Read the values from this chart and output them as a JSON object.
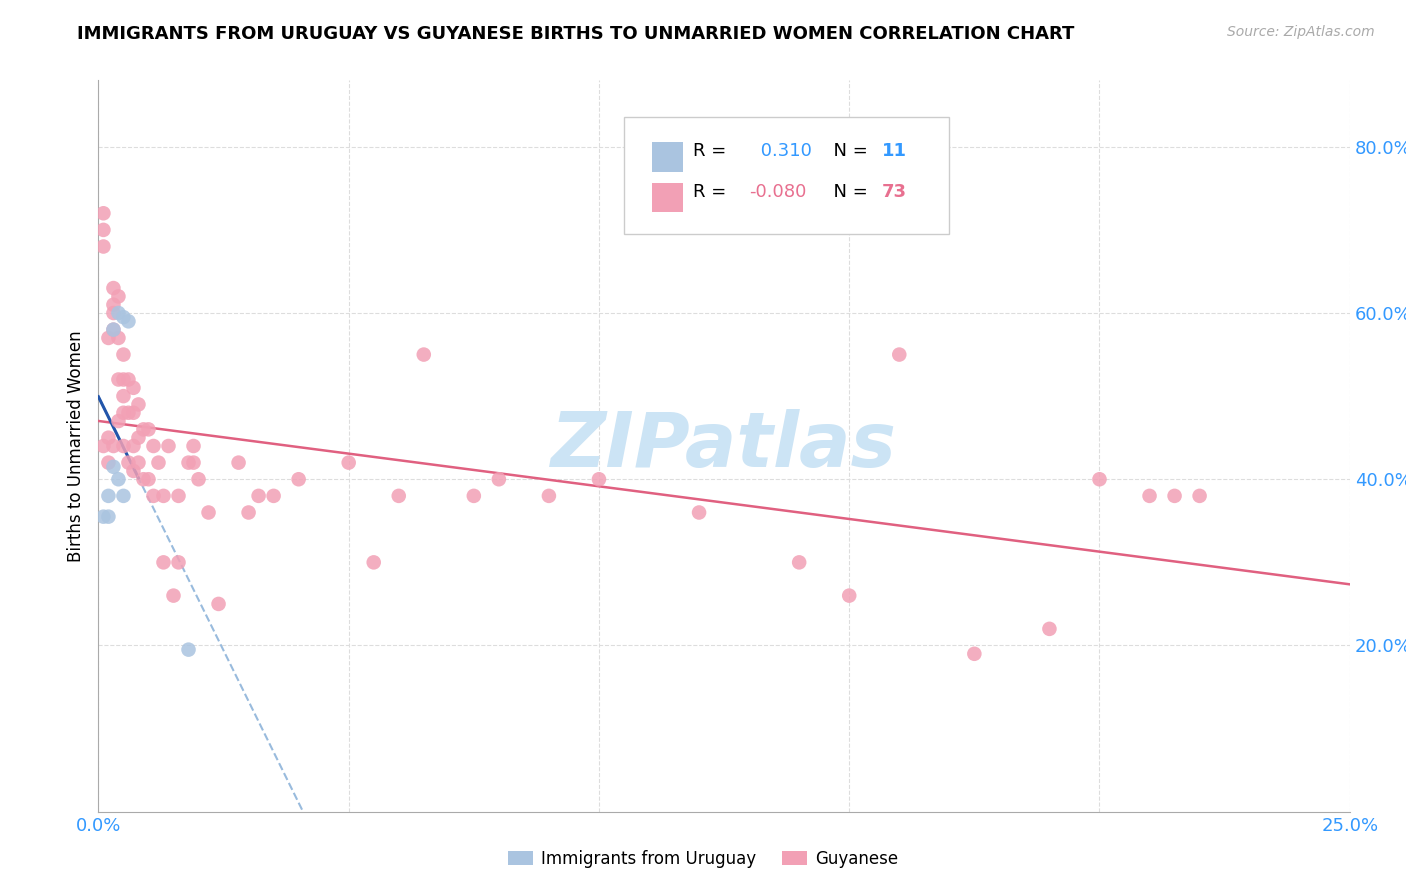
{
  "title": "IMMIGRANTS FROM URUGUAY VS GUYANESE BIRTHS TO UNMARRIED WOMEN CORRELATION CHART",
  "source": "Source: ZipAtlas.com",
  "ylabel": "Births to Unmarried Women",
  "blue_R": 0.31,
  "blue_N": 11,
  "pink_R": -0.08,
  "pink_N": 73,
  "blue_color": "#aac4e0",
  "pink_color": "#f2a0b5",
  "blue_line_color": "#2255aa",
  "pink_line_color": "#e06080",
  "blue_dash_color": "#99bbdd",
  "watermark": "ZIPatlas",
  "watermark_color": "#cce4f5",
  "xlim": [
    0,
    0.25
  ],
  "ylim": [
    0,
    0.88
  ],
  "ytick_vals": [
    0.2,
    0.4,
    0.6,
    0.8
  ],
  "ytick_labels": [
    "20.0%",
    "40.0%",
    "60.0%",
    "80.0%"
  ],
  "xtick_vals": [
    0.0,
    0.05,
    0.1,
    0.15,
    0.2,
    0.25
  ],
  "xtick_labels": [
    "0.0%",
    "",
    "",
    "",
    "",
    "25.0%"
  ],
  "blue_x": [
    0.001,
    0.002,
    0.002,
    0.003,
    0.003,
    0.004,
    0.004,
    0.005,
    0.005,
    0.006,
    0.018
  ],
  "blue_y": [
    0.355,
    0.355,
    0.38,
    0.415,
    0.58,
    0.4,
    0.6,
    0.38,
    0.595,
    0.59,
    0.195
  ],
  "pink_x": [
    0.001,
    0.001,
    0.001,
    0.001,
    0.002,
    0.002,
    0.002,
    0.003,
    0.003,
    0.003,
    0.003,
    0.003,
    0.004,
    0.004,
    0.004,
    0.004,
    0.005,
    0.005,
    0.005,
    0.005,
    0.005,
    0.006,
    0.006,
    0.006,
    0.007,
    0.007,
    0.007,
    0.007,
    0.008,
    0.008,
    0.008,
    0.009,
    0.009,
    0.01,
    0.01,
    0.011,
    0.011,
    0.012,
    0.013,
    0.013,
    0.014,
    0.015,
    0.016,
    0.016,
    0.018,
    0.019,
    0.019,
    0.02,
    0.022,
    0.024,
    0.028,
    0.03,
    0.032,
    0.035,
    0.04,
    0.05,
    0.055,
    0.06,
    0.065,
    0.075,
    0.08,
    0.09,
    0.1,
    0.12,
    0.14,
    0.15,
    0.16,
    0.175,
    0.19,
    0.2,
    0.21,
    0.215,
    0.22
  ],
  "pink_y": [
    0.44,
    0.68,
    0.7,
    0.72,
    0.42,
    0.45,
    0.57,
    0.44,
    0.58,
    0.6,
    0.61,
    0.63,
    0.47,
    0.52,
    0.57,
    0.62,
    0.44,
    0.48,
    0.5,
    0.52,
    0.55,
    0.42,
    0.48,
    0.52,
    0.41,
    0.44,
    0.48,
    0.51,
    0.42,
    0.45,
    0.49,
    0.4,
    0.46,
    0.4,
    0.46,
    0.38,
    0.44,
    0.42,
    0.3,
    0.38,
    0.44,
    0.26,
    0.3,
    0.38,
    0.42,
    0.42,
    0.44,
    0.4,
    0.36,
    0.25,
    0.42,
    0.36,
    0.38,
    0.38,
    0.4,
    0.42,
    0.3,
    0.38,
    0.55,
    0.38,
    0.4,
    0.38,
    0.4,
    0.36,
    0.3,
    0.26,
    0.55,
    0.19,
    0.22,
    0.4,
    0.38,
    0.38,
    0.38
  ]
}
